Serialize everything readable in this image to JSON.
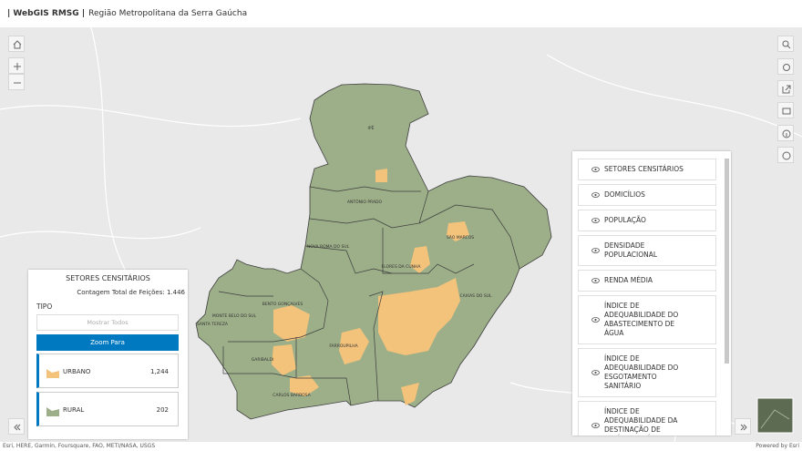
{
  "header": {
    "title": "| WebGIS RMSG |",
    "subtitle": "Região Metropolitana da Serra Gaúcha"
  },
  "map": {
    "municipalities": [
      "IPÊ",
      "ANTÔNIO PRADO",
      "NOVA ROMA DO SUL",
      "SÃO MARCOS",
      "FLORES DA CUNHA",
      "CAXIAS DO SUL",
      "BENTO GONÇALVES",
      "MONTE BELO DO SUL",
      "SANTA TEREZA",
      "GARIBALDI",
      "FARROUPILHA",
      "CARLOS BARBOSA"
    ]
  },
  "legend_panel": {
    "title": "SETORES CENSITÁRIOS",
    "count_text": "Contagem Total de Feições: 1.446",
    "section": "TIPO",
    "show_all": "Mostrar Todos",
    "zoom": "Zoom Para",
    "items": [
      {
        "label": "URBANO",
        "count": "1,244"
      },
      {
        "label": "RURAL",
        "count": "202"
      }
    ]
  },
  "layers": [
    "SETORES CENSITÁRIOS",
    "DOMICÍLIOS",
    "POPULAÇÃO",
    "DENSIDADE POPULACIONAL",
    "RENDA MÉDIA",
    "ÍNDICE DE ADEQUABILIDADE DO ABASTECIMENTO DE ÁGUA",
    "ÍNDICE DE ADEQUABILIDADE DO ESGOTAMENTO SANITÁRIO",
    "ÍNDICE DE ADEQUABILIDADE DA DESTINAÇÃO DE RESÍDUOS SÓLIDOS"
  ],
  "attribution": "Esri, HERE, Garmin, Foursquare, FAO, METI/NASA, USGS",
  "powered_by": "Powered by Esri"
}
